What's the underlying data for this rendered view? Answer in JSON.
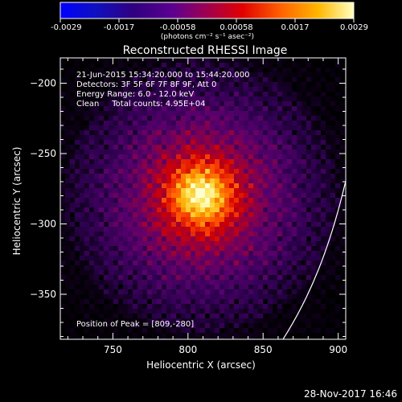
{
  "colorbar": {
    "tick_labels": [
      "-0.0029",
      "-0.0017",
      "-0.00058",
      "0.00058",
      "0.0017",
      "0.0029"
    ],
    "unit_label": "(photons cm⁻² s⁻¹ asec⁻²)"
  },
  "title": "Reconstructed RHESSI Image",
  "info": {
    "time_range": "21-Jun-2015 15:34:20.000 to 15:44:20.000",
    "detectors": "Detectors: 3F 5F 6F 7F 8F 9F, Att 0",
    "energy": "Energy Range: 6.0 - 12.0 keV",
    "clean_counts": "Clean     Total counts: 4.95E+04"
  },
  "peak_label": "Position of Peak = [809,-280]",
  "peak": {
    "x": 809,
    "y": -280
  },
  "axes": {
    "xlabel": "Heliocentric X (arcsec)",
    "ylabel": "Heliocentric Y (arcsec)",
    "xlim": [
      715,
      905
    ],
    "ylim": [
      -382,
      -182
    ],
    "x_ticks": [
      750,
      800,
      850,
      900
    ],
    "y_ticks": [
      -200,
      -250,
      -300,
      -350
    ],
    "x_tick_labels": [
      "750",
      "800",
      "850",
      "900"
    ],
    "y_tick_labels": [
      "−200",
      "−250",
      "−300",
      "−350"
    ]
  },
  "footer_date": "28-Nov-2017 16:46",
  "colors": {
    "background": "#000000",
    "limb": "#ffffff"
  }
}
